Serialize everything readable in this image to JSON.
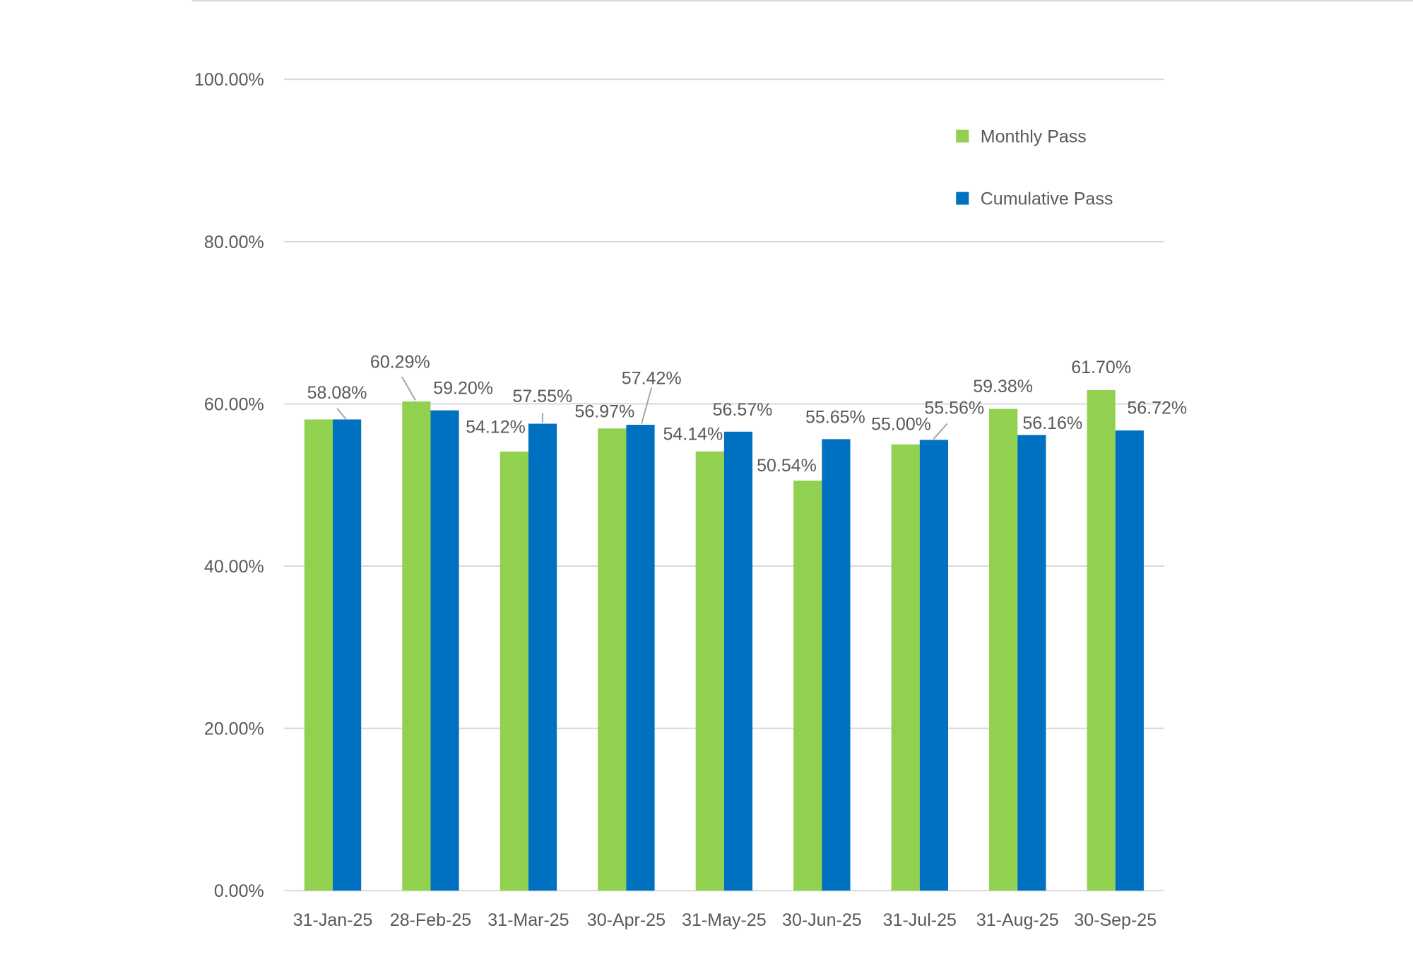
{
  "chart_data": {
    "type": "bar",
    "title": "",
    "xlabel": "",
    "ylabel": "",
    "categories": [
      "31-Jan-25",
      "28-Feb-25",
      "31-Mar-25",
      "30-Apr-25",
      "31-May-25",
      "30-Jun-25",
      "31-Jul-25",
      "31-Aug-25",
      "30-Sep-25"
    ],
    "series": [
      {
        "name": "Monthly Pass",
        "color": "#92d050",
        "values": [
          58.08,
          60.29,
          54.12,
          56.97,
          54.14,
          50.54,
          55.0,
          59.38,
          61.7
        ]
      },
      {
        "name": "Cumulative Pass",
        "color": "#0070c0",
        "values": [
          58.08,
          59.2,
          57.55,
          57.42,
          56.57,
          55.65,
          55.56,
          56.16,
          56.72
        ]
      }
    ],
    "ylim": [
      0,
      100
    ],
    "yticks": [
      0,
      20,
      40,
      60,
      80,
      100
    ],
    "ytick_labels": [
      "0.00%",
      "20.00%",
      "40.00%",
      "60.00%",
      "80.00%",
      "100.00%"
    ],
    "grid": true,
    "legend": "top-right",
    "data_labels": true
  }
}
